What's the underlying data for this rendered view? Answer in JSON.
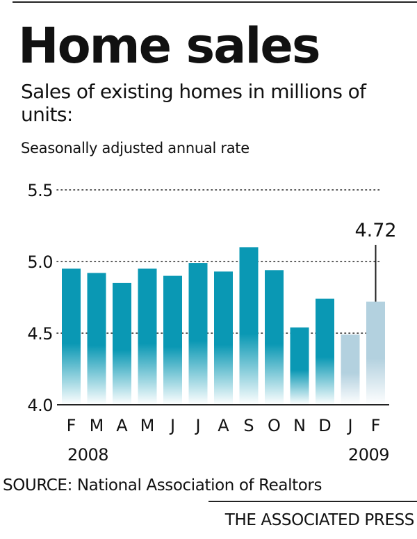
{
  "header": {
    "title": "Home sales",
    "subtitle": "Sales of existing homes in millions of units:",
    "note": "Seasonally adjusted annual rate"
  },
  "footer": {
    "source": "SOURCE: National Association of Realtors",
    "credit": "THE ASSOCIATED PRESS"
  },
  "chart_data": {
    "type": "bar",
    "title": "Home sales",
    "subtitle": "Sales of existing homes in millions of units:",
    "note": "Seasonally adjusted annual rate",
    "categories": [
      "F",
      "M",
      "A",
      "M",
      "J",
      "J",
      "A",
      "S",
      "O",
      "N",
      "D",
      "J",
      "F"
    ],
    "year_labels": [
      "2008",
      "2009"
    ],
    "values": [
      4.95,
      4.92,
      4.85,
      4.95,
      4.9,
      4.99,
      4.93,
      5.1,
      4.94,
      4.54,
      4.74,
      4.49,
      4.72
    ],
    "highlighted_bars": [
      11,
      12
    ],
    "callout": {
      "bar_index": 12,
      "label": "4.72"
    },
    "yticks": [
      "4.0",
      "4.5",
      "5.0",
      "5.5"
    ],
    "ylim": [
      4.0,
      5.5
    ],
    "grid": "dotted",
    "colors": {
      "bar": "#0a98b4",
      "bar_highlight": "#b3d1df",
      "bar_fade": "#ffffff",
      "axis": "#222222",
      "text": "#111111"
    }
  }
}
